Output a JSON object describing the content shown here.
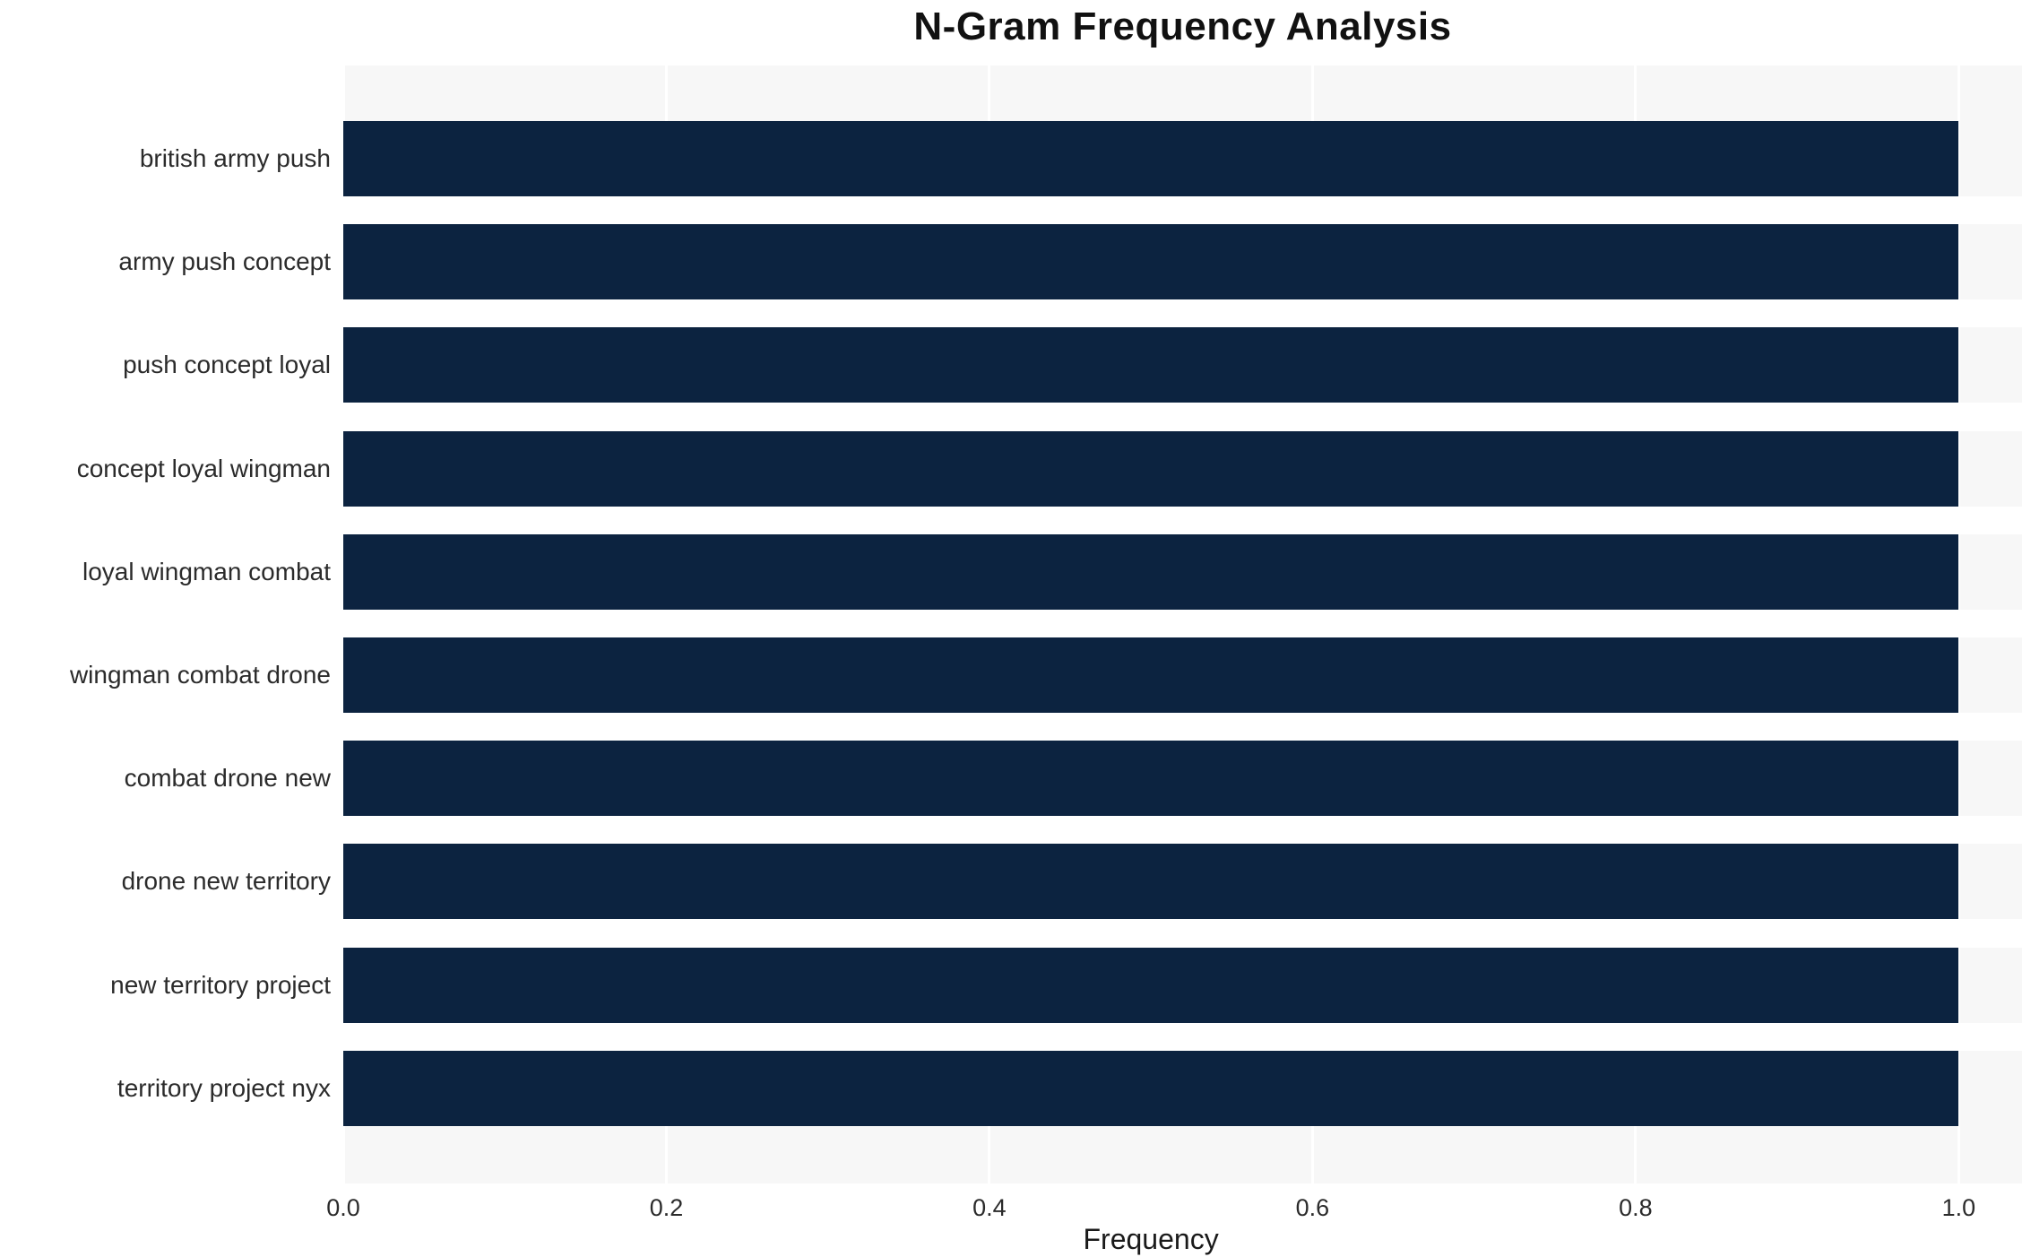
{
  "chart_data": {
    "type": "bar",
    "orientation": "horizontal",
    "title": "N-Gram Frequency Analysis",
    "xlabel": "Frequency",
    "ylabel": "",
    "categories": [
      "british army push",
      "army push concept",
      "push concept loyal",
      "concept loyal wingman",
      "loyal wingman combat",
      "wingman combat drone",
      "combat drone new",
      "drone new territory",
      "new territory project",
      "territory project nyx"
    ],
    "values": [
      1.0,
      1.0,
      1.0,
      1.0,
      1.0,
      1.0,
      1.0,
      1.0,
      1.0,
      1.0
    ],
    "xlim": [
      0,
      1.0392
    ],
    "xtick_values": [
      0.0,
      0.2,
      0.4,
      0.6,
      0.8,
      1.0
    ],
    "xtick_labels": [
      "0.0",
      "0.2",
      "0.4",
      "0.6",
      "0.8",
      "1.0"
    ],
    "grid": true,
    "legend": "none",
    "bar_color": "#0c2340",
    "plot_background": "#f7f7f7",
    "gridline_color": "#ffffff"
  }
}
